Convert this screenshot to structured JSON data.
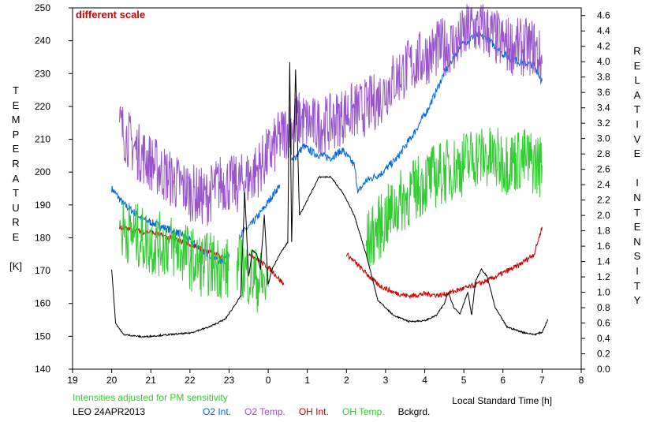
{
  "chart_data": {
    "type": "line",
    "annotation": "different scale",
    "note": "Intensities adjusted for PM sensitivity",
    "station_date": "LEO 24APR2013",
    "xlabel": "Local Standard Time [h]",
    "ylabel_left": [
      "T",
      "E",
      "M",
      "P",
      "E",
      "R",
      "A",
      "T",
      "U",
      "R",
      "E",
      "",
      "[K]"
    ],
    "ylabel_right": [
      "R",
      "E",
      "L",
      "A",
      "T",
      "I",
      "V",
      "E",
      "",
      "I",
      "N",
      "T",
      "E",
      "N",
      "S",
      "I",
      "T",
      "Y"
    ],
    "x_range": [
      19,
      32
    ],
    "x_ticks": [
      19,
      20,
      21,
      22,
      23,
      24,
      25,
      26,
      27,
      28,
      29,
      30,
      31,
      32
    ],
    "x_tick_labels": [
      "19",
      "20",
      "21",
      "22",
      "23",
      "0",
      "1",
      "2",
      "3",
      "4",
      "5",
      "6",
      "7",
      "8"
    ],
    "ylim_left": [
      140,
      250
    ],
    "yticks_left": [
      140,
      150,
      160,
      170,
      180,
      190,
      200,
      210,
      220,
      230,
      240,
      250
    ],
    "ylim_right": [
      0.0,
      4.7
    ],
    "yticks_right": [
      "0.0",
      "0.2",
      "0.4",
      "0.6",
      "0.8",
      "1.0",
      "1.2",
      "1.4",
      "1.6",
      "1.8",
      "2.0",
      "2.2",
      "2.4",
      "2.6",
      "2.8",
      "3.0",
      "3.2",
      "3.4",
      "3.6",
      "3.8",
      "4.0",
      "4.2",
      "4.4",
      "4.6"
    ],
    "series": [
      {
        "name": "O2 Int.",
        "color": "#0066dd",
        "axis": "right",
        "noise": 0.05,
        "segments": [
          [
            [
              20.0,
              2.35
            ],
            [
              20.3,
              2.15
            ],
            [
              20.8,
              1.95
            ],
            [
              21.3,
              1.85
            ],
            [
              21.8,
              1.75
            ],
            [
              22.3,
              1.55
            ],
            [
              22.8,
              1.4
            ],
            [
              23.0,
              1.5
            ]
          ],
          [
            [
              23.3,
              1.75
            ],
            [
              23.6,
              1.9
            ],
            [
              23.9,
              2.1
            ],
            [
              24.3,
              2.4
            ]
          ],
          [
            [
              24.6,
              2.7
            ],
            [
              24.9,
              2.9
            ],
            [
              25.2,
              2.8
            ],
            [
              25.6,
              2.75
            ],
            [
              25.9,
              2.85
            ],
            [
              26.2,
              2.65
            ],
            [
              26.3,
              2.3
            ],
            [
              26.5,
              2.45
            ],
            [
              26.9,
              2.55
            ],
            [
              27.3,
              2.75
            ],
            [
              27.7,
              3.05
            ],
            [
              28.1,
              3.4
            ],
            [
              28.5,
              3.85
            ],
            [
              28.9,
              4.2
            ],
            [
              29.3,
              4.35
            ],
            [
              29.6,
              4.3
            ],
            [
              30.0,
              4.1
            ],
            [
              30.4,
              4.0
            ],
            [
              30.8,
              3.95
            ],
            [
              31.0,
              3.75
            ]
          ]
        ]
      },
      {
        "name": "O2 Temp.",
        "color": "#9955cc",
        "axis": "left",
        "noise": 9,
        "segments": [
          [
            [
              20.2,
              214
            ],
            [
              20.6,
              207
            ],
            [
              21.0,
              203
            ],
            [
              21.5,
              198
            ],
            [
              22.0,
              194
            ],
            [
              22.4,
              192
            ],
            [
              22.8,
              197
            ],
            [
              23.2,
              196
            ],
            [
              23.6,
              199
            ],
            [
              24.0,
              205
            ],
            [
              24.4,
              212
            ],
            [
              24.8,
              216
            ],
            [
              25.2,
              214
            ],
            [
              25.6,
              215
            ],
            [
              26.0,
              218
            ],
            [
              26.4,
              219
            ],
            [
              26.8,
              222
            ],
            [
              27.2,
              228
            ],
            [
              27.6,
              232
            ],
            [
              28.0,
              235
            ],
            [
              28.4,
              238
            ],
            [
              28.8,
              239
            ],
            [
              29.2,
              244
            ],
            [
              29.6,
              243
            ],
            [
              30.0,
              239
            ],
            [
              30.4,
              238
            ],
            [
              30.8,
              238
            ],
            [
              31.0,
              233
            ]
          ]
        ]
      },
      {
        "name": "OH Int.",
        "color": "#cc0000",
        "axis": "right",
        "noise": 0.035,
        "segments": [
          [
            [
              20.2,
              1.85
            ],
            [
              20.6,
              1.8
            ],
            [
              21.0,
              1.78
            ],
            [
              21.4,
              1.72
            ],
            [
              21.8,
              1.66
            ],
            [
              22.2,
              1.58
            ],
            [
              22.6,
              1.5
            ],
            [
              22.9,
              1.45
            ]
          ],
          [
            [
              23.5,
              1.52
            ],
            [
              23.8,
              1.4
            ],
            [
              24.1,
              1.28
            ],
            [
              24.4,
              1.1
            ]
          ],
          [
            [
              26.0,
              1.5
            ],
            [
              26.4,
              1.3
            ],
            [
              26.8,
              1.1
            ],
            [
              27.2,
              1.0
            ],
            [
              27.6,
              0.95
            ],
            [
              28.0,
              0.98
            ],
            [
              28.4,
              0.96
            ],
            [
              28.8,
              1.02
            ],
            [
              29.2,
              1.08
            ],
            [
              29.6,
              1.15
            ],
            [
              30.0,
              1.25
            ],
            [
              30.4,
              1.35
            ],
            [
              30.8,
              1.5
            ],
            [
              31.0,
              1.85
            ]
          ]
        ]
      },
      {
        "name": "OH Temp.",
        "color": "#33cc33",
        "axis": "left",
        "noise": 10,
        "segments": [
          [
            [
              20.2,
              183
            ],
            [
              20.6,
              181
            ],
            [
              21.0,
              178
            ],
            [
              21.4,
              178
            ],
            [
              21.8,
              176
            ],
            [
              22.2,
              172
            ],
            [
              22.6,
              172
            ],
            [
              23.0,
              170
            ]
          ],
          [
            [
              23.2,
              172
            ],
            [
              23.6,
              168
            ],
            [
              24.0,
              165
            ]
          ],
          [
            [
              26.5,
              178
            ],
            [
              26.9,
              184
            ],
            [
              27.3,
              190
            ],
            [
              27.7,
              194
            ],
            [
              28.1,
              198
            ],
            [
              28.5,
              200
            ],
            [
              28.9,
              202
            ],
            [
              29.3,
              205
            ],
            [
              29.7,
              204
            ],
            [
              30.1,
              203
            ],
            [
              30.5,
              204
            ],
            [
              31.0,
              202
            ]
          ]
        ]
      },
      {
        "name": "Bckgrd.",
        "color": "#000000",
        "axis": "right",
        "noise": 0.01,
        "segments": [
          [
            [
              20.0,
              1.3
            ],
            [
              20.1,
              0.6
            ],
            [
              20.3,
              0.45
            ],
            [
              20.8,
              0.42
            ],
            [
              21.5,
              0.45
            ],
            [
              22.0,
              0.47
            ],
            [
              22.5,
              0.55
            ],
            [
              22.9,
              0.65
            ],
            [
              23.1,
              0.8
            ],
            [
              23.3,
              0.95
            ],
            [
              23.4,
              2.3
            ],
            [
              23.5,
              1.2
            ],
            [
              23.6,
              1.55
            ],
            [
              23.7,
              1.5
            ],
            [
              23.8,
              1.3
            ],
            [
              23.9,
              2.0
            ],
            [
              24.0,
              1.1
            ],
            [
              24.1,
              1.3
            ],
            [
              24.3,
              1.5
            ],
            [
              24.5,
              1.65
            ],
            [
              24.55,
              4.0
            ],
            [
              24.6,
              1.65
            ],
            [
              24.7,
              3.9
            ],
            [
              24.8,
              2.0
            ],
            [
              25.0,
              2.2
            ],
            [
              25.3,
              2.5
            ],
            [
              25.6,
              2.5
            ],
            [
              25.9,
              2.3
            ],
            [
              26.2,
              2.0
            ],
            [
              26.5,
              1.5
            ],
            [
              26.8,
              0.9
            ],
            [
              27.2,
              0.7
            ],
            [
              27.6,
              0.62
            ],
            [
              28.0,
              0.63
            ],
            [
              28.3,
              0.7
            ],
            [
              28.5,
              0.85
            ],
            [
              28.6,
              1.0
            ],
            [
              28.75,
              0.8
            ],
            [
              28.9,
              0.72
            ],
            [
              29.1,
              1.0
            ],
            [
              29.2,
              0.7
            ],
            [
              29.3,
              1.15
            ],
            [
              29.45,
              1.3
            ],
            [
              29.6,
              1.2
            ],
            [
              29.8,
              0.8
            ],
            [
              30.1,
              0.55
            ],
            [
              30.5,
              0.48
            ],
            [
              30.8,
              0.45
            ],
            [
              31.0,
              0.48
            ],
            [
              31.15,
              0.65
            ]
          ]
        ]
      }
    ]
  },
  "legend": [
    {
      "name": "O2 Int.",
      "color": "#0066dd"
    },
    {
      "name": "O2 Temp.",
      "color": "#9955cc"
    },
    {
      "name": "OH Int.",
      "color": "#cc0000"
    },
    {
      "name": "OH Temp.",
      "color": "#33cc33"
    },
    {
      "name": "Bckgrd.",
      "color": "#000000"
    }
  ]
}
